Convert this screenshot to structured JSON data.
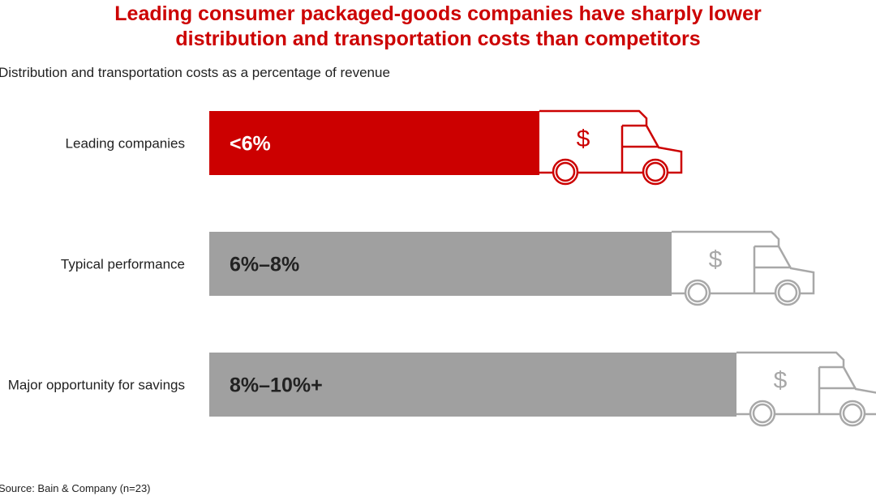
{
  "chart_data": {
    "type": "bar",
    "orientation": "horizontal",
    "title": "Leading consumer packaged-goods companies have sharply lower distribution and transportation costs than competitors",
    "subtitle": "Distribution and transportation costs as a percentage of revenue",
    "categories": [
      "Leading companies",
      "Typical performance",
      "Major opportunity for savings"
    ],
    "data_labels": [
      "<6%",
      "6%–8%",
      "8%–10%+"
    ],
    "ranges_percent": [
      [
        0,
        6
      ],
      [
        6,
        8
      ],
      [
        8,
        10
      ]
    ],
    "colors": [
      "#cc0000",
      "#a0a0a0",
      "#a0a0a0"
    ],
    "icon": "delivery-truck-dollar-icon",
    "icon_symbol": "$",
    "source": "Source: Bain & Company (n=23)",
    "grid": false,
    "legend": "none"
  }
}
